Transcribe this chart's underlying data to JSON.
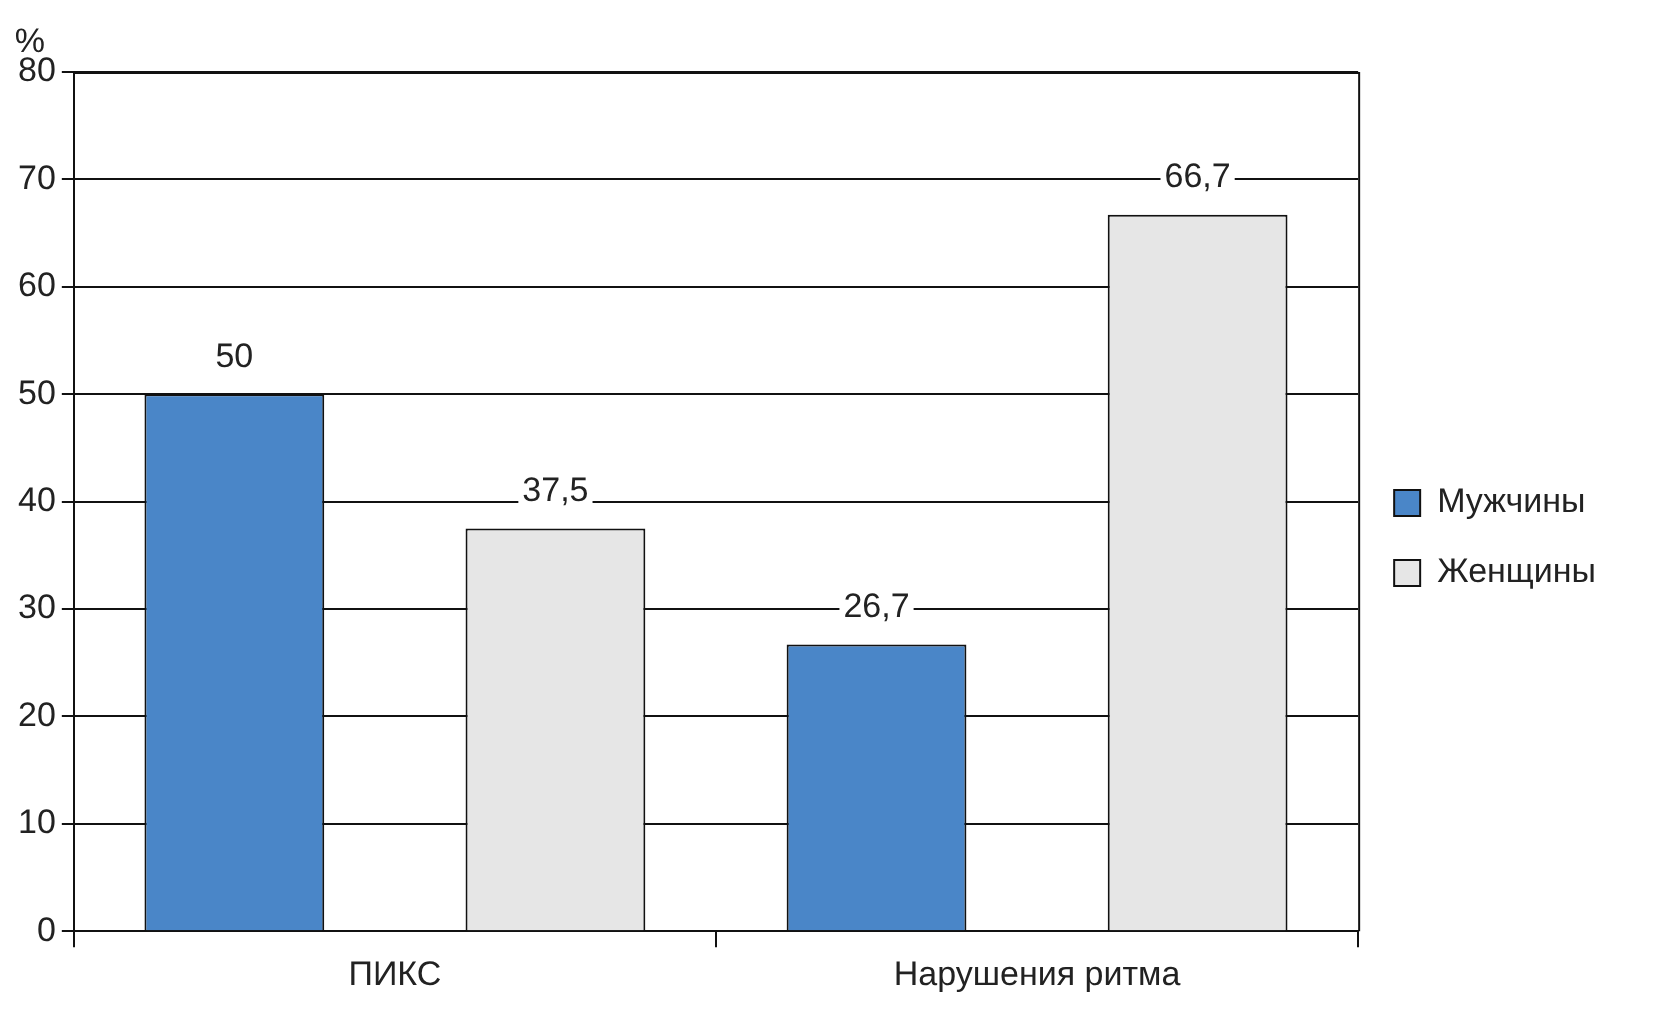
{
  "chart_data": {
    "type": "bar",
    "ylabel": "%",
    "categories": [
      "ПИКС",
      "Нарушения ритма"
    ],
    "series": [
      {
        "name": "Мужчины",
        "color": "#4a86c8",
        "values": [
          50,
          26.7
        ],
        "value_labels": [
          "50",
          "26,7"
        ]
      },
      {
        "name": "Женщины",
        "color": "#e6e6e6",
        "values": [
          37.5,
          66.7
        ],
        "value_labels": [
          "37,5",
          "66,7"
        ]
      }
    ],
    "ylim": [
      0,
      80
    ],
    "yticks": [
      0,
      10,
      20,
      30,
      40,
      50,
      60,
      70,
      80
    ],
    "grid": "y",
    "legend": "right"
  }
}
